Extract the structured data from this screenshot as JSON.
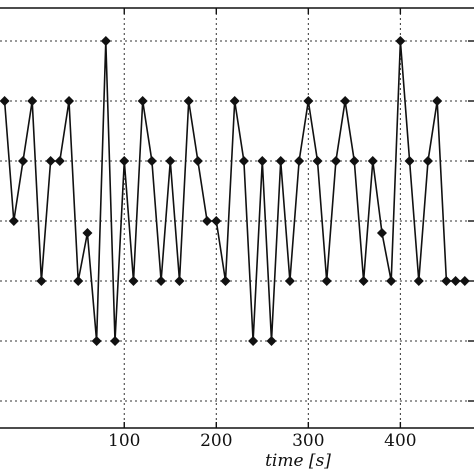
{
  "chart_data": {
    "type": "line",
    "title": "",
    "xlabel": "time [s]",
    "ylabel": "",
    "xlim": [
      -35,
      480
    ],
    "ylim": [
      -1.45,
      5.55
    ],
    "grid": true,
    "x_ticks": [
      100,
      200,
      300,
      400
    ],
    "series": [
      {
        "color": "#111111",
        "marker": "diamond",
        "x": [
          -30,
          -20,
          -10,
          0,
          10,
          20,
          30,
          40,
          50,
          60,
          70,
          80,
          90,
          100,
          110,
          120,
          130,
          140,
          150,
          160,
          170,
          180,
          190,
          200,
          210,
          220,
          230,
          240,
          250,
          260,
          270,
          280,
          290,
          300,
          310,
          320,
          330,
          340,
          350,
          360,
          370,
          380,
          390,
          400,
          410,
          420,
          430,
          440,
          450,
          460,
          470
        ],
        "y": [
          4,
          2,
          3,
          4,
          1,
          3,
          3,
          4,
          1,
          1.8,
          0,
          5,
          0,
          3,
          1,
          4,
          3,
          1,
          3,
          1,
          4,
          3,
          2,
          2,
          1,
          4,
          3,
          0,
          3,
          0,
          3,
          1,
          3,
          4,
          3,
          1,
          3,
          4,
          3,
          1,
          3,
          1.8,
          1,
          5,
          3,
          1,
          3,
          4,
          1,
          1,
          1
        ]
      }
    ]
  }
}
